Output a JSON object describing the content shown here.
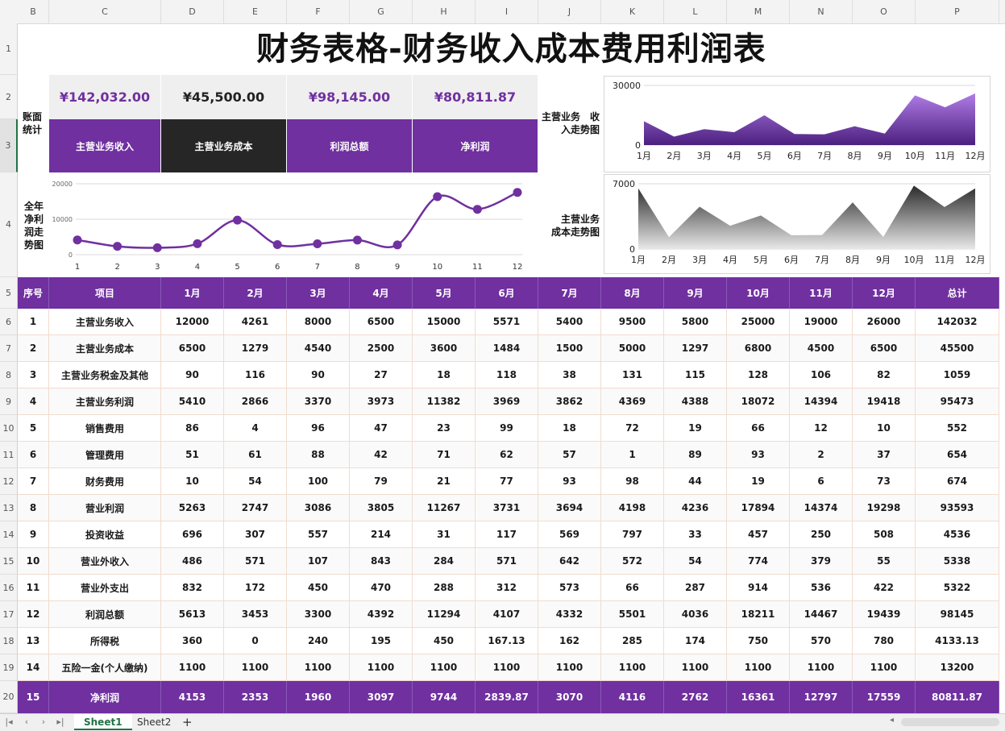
{
  "title": "财务表格-财务收入成本费用利润表",
  "colors": {
    "purple": "#7030a0",
    "dark": "#262626",
    "light_row": "#fafafa",
    "kpi_bg": "#efefef"
  },
  "column_headers": [
    "B",
    "C",
    "D",
    "E",
    "F",
    "G",
    "H",
    "I",
    "J",
    "K",
    "L",
    "M",
    "N",
    "O",
    "P"
  ],
  "row_numbers": [
    "1",
    "2",
    "3",
    "4",
    "5",
    "6",
    "7",
    "8",
    "9",
    "10",
    "11",
    "12",
    "13",
    "14",
    "15",
    "16",
    "17",
    "18",
    "19",
    "20"
  ],
  "side_labels": {
    "book_stats": "账面\n统计",
    "net_profit_trend": "全年\n净利\n润走\n势图",
    "income_trend": "主营业务　收\n入走势图",
    "cost_trend": "主营业务\n成本走势图"
  },
  "kpis": [
    {
      "value": "¥142,032.00",
      "label": "主营业务收入",
      "value_color": "#7030a0",
      "label_bg": "#7030a0"
    },
    {
      "value": "¥45,500.00",
      "label": "主营业务成本",
      "value_color": "#222222",
      "label_bg": "#262626"
    },
    {
      "value": "¥98,145.00",
      "label": "利润总额",
      "value_color": "#7030a0",
      "label_bg": "#7030a0"
    },
    {
      "value": "¥80,811.87",
      "label": "净利润",
      "value_color": "#7030a0",
      "label_bg": "#7030a0"
    }
  ],
  "table": {
    "headers": [
      "序号",
      "项目",
      "1月",
      "2月",
      "3月",
      "4月",
      "5月",
      "6月",
      "7月",
      "8月",
      "9月",
      "10月",
      "11月",
      "12月",
      "总计"
    ],
    "rows": [
      [
        "1",
        "主营业务收入",
        "12000",
        "4261",
        "8000",
        "6500",
        "15000",
        "5571",
        "5400",
        "9500",
        "5800",
        "25000",
        "19000",
        "26000",
        "142032"
      ],
      [
        "2",
        "主营业务成本",
        "6500",
        "1279",
        "4540",
        "2500",
        "3600",
        "1484",
        "1500",
        "5000",
        "1297",
        "6800",
        "4500",
        "6500",
        "45500"
      ],
      [
        "3",
        "主营业务税金及其他",
        "90",
        "116",
        "90",
        "27",
        "18",
        "118",
        "38",
        "131",
        "115",
        "128",
        "106",
        "82",
        "1059"
      ],
      [
        "4",
        "主营业务利润",
        "5410",
        "2866",
        "3370",
        "3973",
        "11382",
        "3969",
        "3862",
        "4369",
        "4388",
        "18072",
        "14394",
        "19418",
        "95473"
      ],
      [
        "5",
        "销售费用",
        "86",
        "4",
        "96",
        "47",
        "23",
        "99",
        "18",
        "72",
        "19",
        "66",
        "12",
        "10",
        "552"
      ],
      [
        "6",
        "管理费用",
        "51",
        "61",
        "88",
        "42",
        "71",
        "62",
        "57",
        "1",
        "89",
        "93",
        "2",
        "37",
        "654"
      ],
      [
        "7",
        "财务费用",
        "10",
        "54",
        "100",
        "79",
        "21",
        "77",
        "93",
        "98",
        "44",
        "19",
        "6",
        "73",
        "674"
      ],
      [
        "8",
        "营业利润",
        "5263",
        "2747",
        "3086",
        "3805",
        "11267",
        "3731",
        "3694",
        "4198",
        "4236",
        "17894",
        "14374",
        "19298",
        "93593"
      ],
      [
        "9",
        "投资收益",
        "696",
        "307",
        "557",
        "214",
        "31",
        "117",
        "569",
        "797",
        "33",
        "457",
        "250",
        "508",
        "4536"
      ],
      [
        "10",
        "营业外收入",
        "486",
        "571",
        "107",
        "843",
        "284",
        "571",
        "642",
        "572",
        "54",
        "774",
        "379",
        "55",
        "5338"
      ],
      [
        "11",
        "营业外支出",
        "832",
        "172",
        "450",
        "470",
        "288",
        "312",
        "573",
        "66",
        "287",
        "914",
        "536",
        "422",
        "5322"
      ],
      [
        "12",
        "利润总额",
        "5613",
        "3453",
        "3300",
        "4392",
        "11294",
        "4107",
        "4332",
        "5501",
        "4036",
        "18211",
        "14467",
        "19439",
        "98145"
      ],
      [
        "13",
        "所得税",
        "360",
        "0",
        "240",
        "195",
        "450",
        "167.13",
        "162",
        "285",
        "174",
        "750",
        "570",
        "780",
        "4133.13"
      ],
      [
        "14",
        "五险一金(个人缴纳)",
        "1100",
        "1100",
        "1100",
        "1100",
        "1100",
        "1100",
        "1100",
        "1100",
        "1100",
        "1100",
        "1100",
        "1100",
        "13200"
      ]
    ],
    "footer": [
      "15",
      "净利润",
      "4153",
      "2353",
      "1960",
      "3097",
      "9744",
      "2839.87",
      "3070",
      "4116",
      "2762",
      "16361",
      "12797",
      "17559",
      "80811.87"
    ]
  },
  "chart_data": [
    {
      "type": "line",
      "x": [
        1,
        2,
        3,
        4,
        5,
        6,
        7,
        8,
        9,
        10,
        11,
        12
      ],
      "x_tick_labels": [
        "1",
        "2",
        "3",
        "4",
        "5",
        "6",
        "7",
        "8",
        "9",
        "10",
        "11",
        "12"
      ],
      "values": [
        4153,
        2353,
        1960,
        3097,
        9744,
        2839.87,
        3070,
        4116,
        2762,
        16361,
        12797,
        17559
      ],
      "ylim": [
        0,
        20000
      ],
      "y_tick_labels": [
        "0",
        "10000",
        "20000"
      ],
      "grid": true,
      "color": "#7030a0"
    },
    {
      "type": "area",
      "categories": [
        "1月",
        "2月",
        "3月",
        "4月",
        "5月",
        "6月",
        "7月",
        "8月",
        "9月",
        "10月",
        "11月",
        "12月"
      ],
      "values": [
        12000,
        4261,
        8000,
        6500,
        15000,
        5571,
        5400,
        9500,
        5800,
        25000,
        19000,
        26000
      ],
      "ylim": [
        0,
        30000
      ],
      "y_tick_labels": [
        "0",
        "30000"
      ],
      "grid": true,
      "color": "#7030a0"
    },
    {
      "type": "area",
      "categories": [
        "1月",
        "2月",
        "3月",
        "4月",
        "5月",
        "6月",
        "7月",
        "8月",
        "9月",
        "10月",
        "11月",
        "12月"
      ],
      "values": [
        6500,
        1279,
        4540,
        2500,
        3600,
        1484,
        1500,
        5000,
        1297,
        6800,
        4500,
        6500
      ],
      "ylim": [
        0,
        7000
      ],
      "y_tick_labels": [
        "0",
        "7000"
      ],
      "grid": true,
      "color": "#262626"
    }
  ],
  "tabs": {
    "sheets": [
      "Sheet1",
      "Sheet2"
    ],
    "active": "Sheet1",
    "add": "+",
    "nav": [
      "|◂",
      "‹",
      "›",
      "▸|"
    ]
  }
}
